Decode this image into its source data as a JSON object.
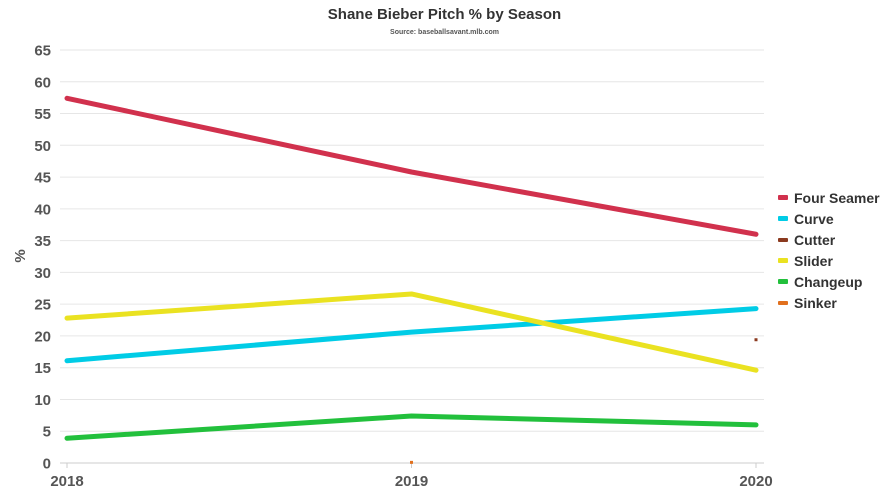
{
  "chart_data": {
    "type": "line",
    "title": "Shane Bieber Pitch % by Season",
    "subtitle": "Source: baseballsavant.mlb.com",
    "xlabel": "",
    "ylabel": "%",
    "categories": [
      "2018",
      "2019",
      "2020"
    ],
    "ylim": [
      0,
      65
    ],
    "yticks": [
      0,
      5,
      10,
      15,
      20,
      25,
      30,
      35,
      40,
      45,
      50,
      55,
      60,
      65
    ],
    "grid": true,
    "legend_position": "right",
    "series": [
      {
        "name": "Four Seamer",
        "color": "#d1314d",
        "values": [
          57.4,
          45.8,
          36.0
        ]
      },
      {
        "name": "Curve",
        "color": "#00cce6",
        "values": [
          16.1,
          20.6,
          24.3
        ]
      },
      {
        "name": "Cutter",
        "color": "#8b3a1f",
        "values": [
          null,
          null,
          19.4
        ]
      },
      {
        "name": "Slider",
        "color": "#eae221",
        "values": [
          22.8,
          26.6,
          14.6
        ]
      },
      {
        "name": "Changeup",
        "color": "#22c03c",
        "values": [
          3.9,
          7.4,
          6.0
        ]
      },
      {
        "name": "Sinker",
        "color": "#e1701e",
        "values": [
          null,
          0.1,
          null
        ]
      }
    ]
  }
}
